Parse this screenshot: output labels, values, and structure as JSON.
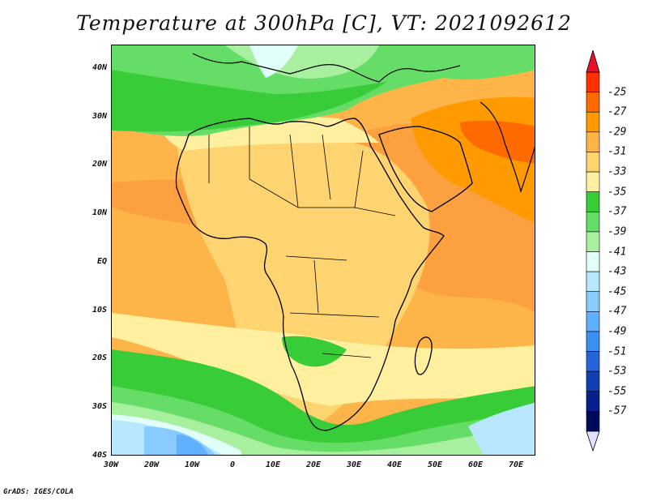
{
  "title": "Temperature at 300hPa [C], VT: 2021092612",
  "credit": "GrADS: IGES/COLA",
  "map": {
    "lat_labels": [
      "40N",
      "30N",
      "20N",
      "10N",
      "EQ",
      "10S",
      "20S",
      "30S",
      "40S"
    ],
    "lon_labels": [
      "30W",
      "20W",
      "10W",
      "0",
      "10E",
      "20E",
      "30E",
      "40E",
      "50E",
      "60E",
      "70E"
    ],
    "lon_range": [
      -30,
      75
    ],
    "lat_range": [
      -40,
      45
    ]
  },
  "colorbar": {
    "labels": [
      "-25",
      "-27",
      "-29",
      "-31",
      "-33",
      "-35",
      "-37",
      "-39",
      "-41",
      "-43",
      "-45",
      "-47",
      "-49",
      "-51",
      "-53",
      "-55",
      "-57"
    ],
    "colors": [
      "#ff3000",
      "#ff6a00",
      "#ff9a00",
      "#fdb54a",
      "#fdd470",
      "#fff0a0",
      "#38cc38",
      "#66dd66",
      "#a8f0a0",
      "#e0fff8",
      "#b8e8ff",
      "#88ccff",
      "#60b0ff",
      "#3c90f0",
      "#2466d8",
      "#1040b0",
      "#08208a",
      "#000a5a"
    ],
    "over_color": "#e8102c",
    "under_color": "#e0e0ff"
  }
}
